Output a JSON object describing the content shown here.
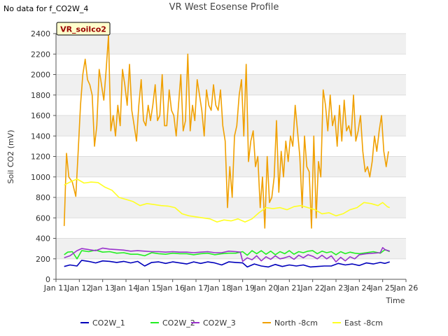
{
  "header": {
    "no_data_text": "No data for f_CO2W_4",
    "title": "VR West Eosense Profile"
  },
  "colors": {
    "plot_band": "#f0f0f0",
    "grid": "#dddddd",
    "CO2W_1": "#0000bb",
    "CO2W_2": "#22ee22",
    "CO2W_3": "#9933cc",
    "North_8cm": "#f0a000",
    "East_8cm": "#ffff22",
    "site_label_bg": "#ffffcc",
    "site_label_text": "#990000"
  },
  "chart_data": {
    "type": "line",
    "title": "VR West Eosense Profile",
    "xlabel": "Time",
    "ylabel": "Soil CO2 (mV)",
    "site_label": "VR_soilco2",
    "xlim": [
      11,
      26
    ],
    "ylim": [
      0,
      2400
    ],
    "x_ticks": [
      11,
      12,
      13,
      14,
      15,
      16,
      17,
      18,
      19,
      20,
      21,
      22,
      23,
      24,
      25,
      26
    ],
    "x_tick_labels": [
      "Jan 11",
      "Jan 12",
      "Jan 13",
      "Jan 14",
      "Jan 15",
      "Jan 16",
      "Jan 17",
      "Jan 18",
      "Jan 19",
      "Jan 20",
      "Jan 21",
      "Jan 22",
      "Jan 23",
      "Jan 24",
      "Jan 25",
      "Jan 26"
    ],
    "y_ticks": [
      0,
      200,
      400,
      600,
      800,
      1000,
      1200,
      1400,
      1600,
      1800,
      2000,
      2200,
      2400
    ],
    "legend_position": "bottom",
    "grid": true,
    "series": [
      {
        "name": "CO2W_1",
        "color_key": "CO2W_1",
        "x": [
          11.35,
          11.6,
          11.9,
          12.1,
          12.4,
          12.7,
          13.0,
          13.3,
          13.6,
          13.9,
          14.2,
          14.5,
          14.8,
          15.1,
          15.4,
          15.7,
          16.0,
          16.3,
          16.6,
          16.9,
          17.2,
          17.5,
          17.8,
          18.1,
          18.4,
          18.7,
          19.0,
          19.2,
          19.5,
          19.8,
          20.1,
          20.4,
          20.7,
          21.0,
          21.3,
          21.6,
          21.9,
          22.2,
          22.5,
          22.8,
          23.1,
          23.4,
          23.7,
          24.0,
          24.3,
          24.6,
          24.9,
          25.1,
          25.3
        ],
        "y": [
          125,
          140,
          130,
          185,
          175,
          160,
          180,
          175,
          165,
          175,
          160,
          175,
          130,
          165,
          170,
          155,
          170,
          160,
          150,
          170,
          155,
          170,
          160,
          140,
          170,
          165,
          160,
          120,
          150,
          130,
          120,
          145,
          125,
          140,
          130,
          140,
          120,
          125,
          130,
          130,
          155,
          140,
          150,
          135,
          160,
          150,
          165,
          155,
          170
        ]
      },
      {
        "name": "CO2W_2",
        "color_key": "CO2W_2",
        "x": [
          11.35,
          11.5,
          11.7,
          11.9,
          12.1,
          12.4,
          12.7,
          13.0,
          13.3,
          13.6,
          13.9,
          14.2,
          14.5,
          14.8,
          15.1,
          15.4,
          15.7,
          16.0,
          16.3,
          16.6,
          16.9,
          17.2,
          17.5,
          17.8,
          18.1,
          18.4,
          18.7,
          19.0,
          19.2,
          19.4,
          19.6,
          19.8,
          20.0,
          20.2,
          20.4,
          20.6,
          20.8,
          21.0,
          21.2,
          21.4,
          21.6,
          21.8,
          22.0,
          22.2,
          22.4,
          22.6,
          22.8,
          23.0,
          23.2,
          23.4,
          23.6,
          23.8,
          24.0,
          24.3,
          24.6,
          24.9,
          25.1,
          25.3
        ],
        "y": [
          240,
          265,
          270,
          200,
          280,
          270,
          285,
          265,
          270,
          255,
          260,
          245,
          245,
          230,
          260,
          250,
          245,
          255,
          250,
          250,
          240,
          250,
          255,
          240,
          250,
          255,
          255,
          270,
          235,
          280,
          250,
          280,
          245,
          275,
          240,
          270,
          250,
          280,
          245,
          270,
          260,
          275,
          280,
          250,
          275,
          260,
          270,
          240,
          270,
          250,
          265,
          255,
          250,
          260,
          270,
          255,
          290,
          270
        ]
      },
      {
        "name": "CO2W_3",
        "color_key": "CO2W_3",
        "x": [
          11.35,
          11.6,
          11.9,
          12.1,
          12.4,
          12.7,
          13.0,
          13.3,
          13.6,
          13.9,
          14.2,
          14.5,
          14.8,
          15.1,
          15.4,
          15.7,
          16.0,
          16.3,
          16.6,
          16.9,
          17.2,
          17.5,
          17.8,
          18.1,
          18.4,
          18.7,
          18.9,
          19.0,
          19.2,
          19.4,
          19.6,
          19.8,
          20.0,
          20.2,
          20.4,
          20.6,
          20.8,
          21.0,
          21.2,
          21.4,
          21.6,
          21.8,
          22.0,
          22.2,
          22.4,
          22.6,
          22.8,
          23.0,
          23.2,
          23.4,
          23.6,
          23.8,
          24.0,
          24.3,
          24.6,
          24.9,
          25.0,
          25.1,
          25.3
        ],
        "y": [
          210,
          230,
          280,
          300,
          290,
          280,
          305,
          295,
          290,
          285,
          275,
          280,
          275,
          270,
          270,
          265,
          270,
          265,
          265,
          260,
          265,
          270,
          260,
          260,
          275,
          270,
          265,
          175,
          210,
          190,
          230,
          180,
          220,
          195,
          230,
          200,
          210,
          225,
          195,
          235,
          210,
          240,
          225,
          200,
          235,
          200,
          230,
          170,
          215,
          180,
          220,
          200,
          240,
          250,
          255,
          260,
          310,
          290,
          275
        ]
      },
      {
        "name": "North -8cm",
        "color_key": "North_8cm",
        "x": [
          11.35,
          11.45,
          11.55,
          11.7,
          11.85,
          11.95,
          12.05,
          12.15,
          12.25,
          12.35,
          12.45,
          12.55,
          12.65,
          12.75,
          12.85,
          12.95,
          13.05,
          13.15,
          13.25,
          13.35,
          13.45,
          13.55,
          13.65,
          13.75,
          13.85,
          13.95,
          14.05,
          14.15,
          14.25,
          14.35,
          14.45,
          14.55,
          14.65,
          14.75,
          14.85,
          14.95,
          15.05,
          15.15,
          15.25,
          15.35,
          15.45,
          15.55,
          15.65,
          15.75,
          15.85,
          15.95,
          16.05,
          16.15,
          16.25,
          16.35,
          16.45,
          16.55,
          16.65,
          16.75,
          16.85,
          16.95,
          17.05,
          17.15,
          17.25,
          17.35,
          17.45,
          17.55,
          17.65,
          17.75,
          17.85,
          17.95,
          18.05,
          18.15,
          18.25,
          18.35,
          18.45,
          18.55,
          18.65,
          18.75,
          18.85,
          18.95,
          19.05,
          19.15,
          19.25,
          19.35,
          19.45,
          19.55,
          19.65,
          19.75,
          19.85,
          19.95,
          20.05,
          20.15,
          20.25,
          20.35,
          20.45,
          20.55,
          20.65,
          20.75,
          20.85,
          20.95,
          21.05,
          21.15,
          21.25,
          21.35,
          21.45,
          21.55,
          21.65,
          21.75,
          21.85,
          21.95,
          22.05,
          22.15,
          22.25,
          22.35,
          22.45,
          22.55,
          22.65,
          22.75,
          22.85,
          22.95,
          23.05,
          23.15,
          23.25,
          23.35,
          23.45,
          23.55,
          23.65,
          23.75,
          23.85,
          23.95,
          24.05,
          24.15,
          24.25,
          24.35,
          24.45,
          24.55,
          24.65,
          24.75,
          24.85,
          24.95,
          25.05,
          25.15,
          25.25
        ],
        "y": [
          520,
          1230,
          1000,
          950,
          810,
          1250,
          1700,
          2000,
          2150,
          1950,
          1900,
          1800,
          1300,
          1500,
          2050,
          1900,
          1750,
          2050,
          2380,
          1450,
          1600,
          1400,
          1700,
          1500,
          2050,
          1900,
          1700,
          2100,
          1650,
          1500,
          1350,
          1700,
          1950,
          1550,
          1500,
          1700,
          1550,
          1700,
          1900,
          1550,
          1600,
          2000,
          1500,
          1500,
          1850,
          1650,
          1600,
          1400,
          1700,
          2000,
          1450,
          1550,
          2200,
          1450,
          1700,
          1550,
          1950,
          1800,
          1650,
          1400,
          1850,
          1700,
          1650,
          1900,
          1700,
          1650,
          1850,
          1500,
          1350,
          700,
          1100,
          800,
          1400,
          1500,
          1800,
          1950,
          1400,
          2100,
          1150,
          1350,
          1450,
          1100,
          1200,
          700,
          1000,
          500,
          1200,
          750,
          800,
          1000,
          1550,
          850,
          1250,
          1000,
          1350,
          1150,
          1400,
          1300,
          1700,
          1450,
          1200,
          700,
          1400,
          1100,
          1050,
          500,
          1400,
          600,
          1150,
          1000,
          1850,
          1700,
          1450,
          1800,
          1500,
          1600,
          1300,
          1700,
          1350,
          1750,
          1450,
          1500,
          1400,
          1800,
          1350,
          1450,
          1600,
          1250,
          1050,
          1100,
          1000,
          1150,
          1400,
          1250,
          1450,
          1600,
          1250,
          1100,
          1250
        ],
        "note_series_visible": true
      },
      {
        "name": "East -8cm",
        "color_key": "East_8cm",
        "x": [
          11.35,
          11.6,
          11.9,
          12.2,
          12.5,
          12.8,
          13.1,
          13.4,
          13.7,
          14.0,
          14.3,
          14.6,
          14.9,
          15.2,
          15.5,
          15.8,
          16.1,
          16.4,
          16.7,
          17.0,
          17.3,
          17.6,
          17.9,
          18.2,
          18.5,
          18.8,
          19.1,
          19.4,
          19.7,
          20.0,
          20.3,
          20.6,
          20.9,
          21.2,
          21.5,
          21.8,
          22.1,
          22.4,
          22.7,
          23.0,
          23.3,
          23.6,
          23.9,
          24.2,
          24.5,
          24.8,
          25.0,
          25.2,
          25.3
        ],
        "y": [
          920,
          950,
          980,
          940,
          950,
          945,
          900,
          870,
          800,
          780,
          760,
          720,
          740,
          730,
          720,
          715,
          700,
          640,
          620,
          610,
          600,
          590,
          560,
          580,
          570,
          590,
          560,
          590,
          650,
          700,
          690,
          700,
          680,
          710,
          720,
          700,
          680,
          640,
          650,
          620,
          640,
          680,
          700,
          750,
          740,
          720,
          750,
          710,
          700
        ]
      }
    ]
  }
}
